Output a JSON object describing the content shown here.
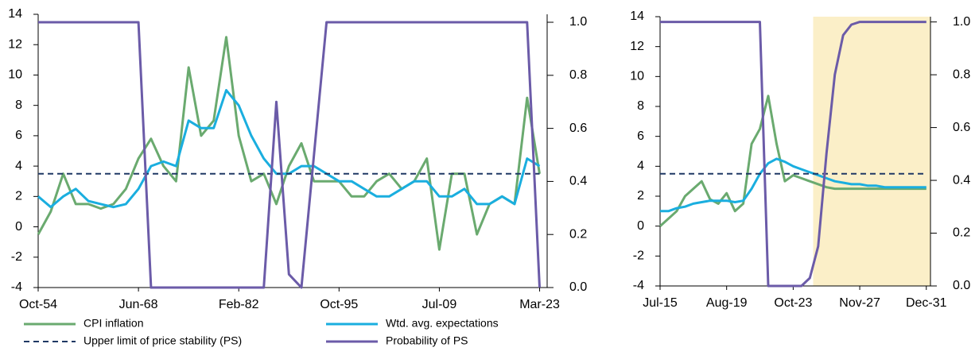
{
  "chart_data": [
    {
      "type": "line",
      "x": [
        "Oct-54",
        null,
        null,
        null,
        null,
        null,
        null,
        null,
        "Jun-68",
        null,
        null,
        null,
        null,
        null,
        null,
        null,
        "Feb-82",
        null,
        null,
        null,
        null,
        null,
        null,
        null,
        "Oct-95",
        null,
        null,
        null,
        null,
        null,
        null,
        null,
        "Jul-09",
        null,
        null,
        null,
        null,
        null,
        null,
        null,
        "Mar-23"
      ],
      "xlim": [
        0,
        40.6
      ],
      "ylim": [
        -4,
        14
      ],
      "yticks": [
        -4,
        -2,
        0,
        2,
        4,
        6,
        8,
        10,
        12,
        14
      ],
      "y2lim": [
        0,
        1.03
      ],
      "y2ticks": [
        {
          "value": 0,
          "label": "0.0"
        },
        0.2,
        0.4,
        0.6,
        0.8,
        {
          "value": 1,
          "label": "1.0"
        }
      ],
      "legend": "bottom",
      "series": [
        {
          "name": "CPI inflation",
          "color": "#6aaa6f",
          "values": [
            -0.5,
            1,
            3.5,
            1.5,
            1.5,
            1.2,
            1.5,
            2.5,
            4.5,
            5.8,
            4,
            3,
            10.5,
            6,
            7,
            12.5,
            6,
            3,
            3.5,
            1.5,
            4,
            5.5,
            3,
            3,
            3,
            2,
            2,
            3,
            3.5,
            2.5,
            3,
            4.5,
            -1.5,
            3.5,
            3.5,
            -0.5,
            1.5,
            2,
            1.5,
            8.5,
            3.5
          ]
        },
        {
          "name": "Wtd. avg. expectations",
          "color": "#1aaedf",
          "values": [
            2,
            1.3,
            2,
            2.5,
            1.7,
            1.5,
            1.3,
            1.5,
            2.5,
            4,
            4.3,
            4,
            7,
            6.5,
            6.5,
            9,
            8,
            6,
            4.5,
            3.5,
            3.5,
            4,
            4,
            3.5,
            3,
            3,
            2.5,
            2,
            2,
            2.5,
            3,
            3,
            2,
            2,
            2.5,
            1.5,
            1.5,
            2,
            1.5,
            4.5,
            4
          ]
        },
        {
          "name": "Upper limit of price stability (PS)",
          "color": "#1f3864",
          "style": "dashed",
          "values": [
            3.5,
            3.5,
            3.5,
            3.5,
            3.5,
            3.5,
            3.5,
            3.5,
            3.5,
            3.5,
            3.5,
            3.5,
            3.5,
            3.5,
            3.5,
            3.5,
            3.5,
            3.5,
            3.5,
            3.5,
            3.5,
            3.5,
            3.5,
            3.5,
            3.5,
            3.5,
            3.5,
            3.5,
            3.5,
            3.5,
            3.5,
            3.5,
            3.5,
            3.5,
            3.5,
            3.5,
            3.5,
            3.5,
            3.5,
            3.5,
            3.5
          ]
        },
        {
          "name": "Probability of PS",
          "color": "#6b5ba8",
          "axis": "y2",
          "values": [
            1,
            1,
            1,
            1,
            1,
            1,
            1,
            1,
            1,
            0,
            0,
            0,
            0,
            0,
            0,
            0,
            0,
            0,
            0,
            0.7,
            0.05,
            0,
            0.5,
            1,
            1,
            1,
            1,
            1,
            1,
            1,
            1,
            1,
            1,
            1,
            1,
            1,
            1,
            1,
            1,
            1,
            0
          ]
        }
      ]
    },
    {
      "type": "line",
      "x": [
        "Jul-15",
        null,
        null,
        null,
        null,
        null,
        null,
        null,
        "Aug-19",
        null,
        null,
        null,
        null,
        null,
        null,
        null,
        "Oct-23",
        null,
        null,
        null,
        null,
        null,
        null,
        null,
        "Nov-27",
        null,
        null,
        null,
        null,
        null,
        null,
        null,
        "Dec-31"
      ],
      "xlim": [
        0,
        32.5
      ],
      "shade_x": [
        18.4,
        32.5
      ],
      "shade_color": "#fbefc8",
      "ylim": [
        -4,
        14
      ],
      "yticks": [
        -4,
        -2,
        0,
        2,
        4,
        6,
        8,
        10,
        12,
        14
      ],
      "y2lim": [
        0,
        1.02
      ],
      "y2ticks": [
        {
          "value": 0,
          "label": "0.0"
        },
        0.2,
        0.4,
        0.6,
        0.8,
        {
          "value": 1,
          "label": "1.0"
        }
      ],
      "series": [
        {
          "color": "#6aaa6f",
          "values": [
            0,
            0.5,
            1,
            2,
            2.5,
            3,
            1.8,
            1.5,
            2.2,
            1,
            1.5,
            5.5,
            6.5,
            8.7,
            5.5,
            3,
            3.4,
            3.2,
            3,
            2.8,
            2.6,
            2.5,
            2.5,
            2.5,
            2.5,
            2.5,
            2.5,
            2.5,
            2.5,
            2.5,
            2.5,
            2.5,
            2.5
          ]
        },
        {
          "color": "#1aaedf",
          "values": [
            1,
            1,
            1.2,
            1.3,
            1.5,
            1.6,
            1.7,
            1.7,
            1.7,
            1.6,
            1.7,
            2.5,
            3.5,
            4.2,
            4.5,
            4.3,
            4,
            3.8,
            3.6,
            3.4,
            3.2,
            3,
            2.9,
            2.8,
            2.8,
            2.7,
            2.7,
            2.6,
            2.6,
            2.6,
            2.6,
            2.6,
            2.6
          ]
        },
        {
          "color": "#1f3864",
          "style": "dashed",
          "values": [
            3.5,
            3.5,
            3.5,
            3.5,
            3.5,
            3.5,
            3.5,
            3.5,
            3.5,
            3.5,
            3.5,
            3.5,
            3.5,
            3.5,
            3.5,
            3.5,
            3.5,
            3.5,
            3.5,
            3.5,
            3.5,
            3.5,
            3.5,
            3.5,
            3.5,
            3.5,
            3.5,
            3.5,
            3.5,
            3.5,
            3.5,
            3.5,
            3.5
          ]
        },
        {
          "color": "#6b5ba8",
          "axis": "y2",
          "values": [
            1,
            1,
            1,
            1,
            1,
            1,
            1,
            1,
            1,
            1,
            1,
            1,
            1,
            0,
            0,
            0,
            0,
            0,
            0.03,
            0.15,
            0.5,
            0.8,
            0.95,
            0.99,
            1,
            1,
            1,
            1,
            1,
            1,
            1,
            1,
            1
          ]
        }
      ]
    }
  ]
}
